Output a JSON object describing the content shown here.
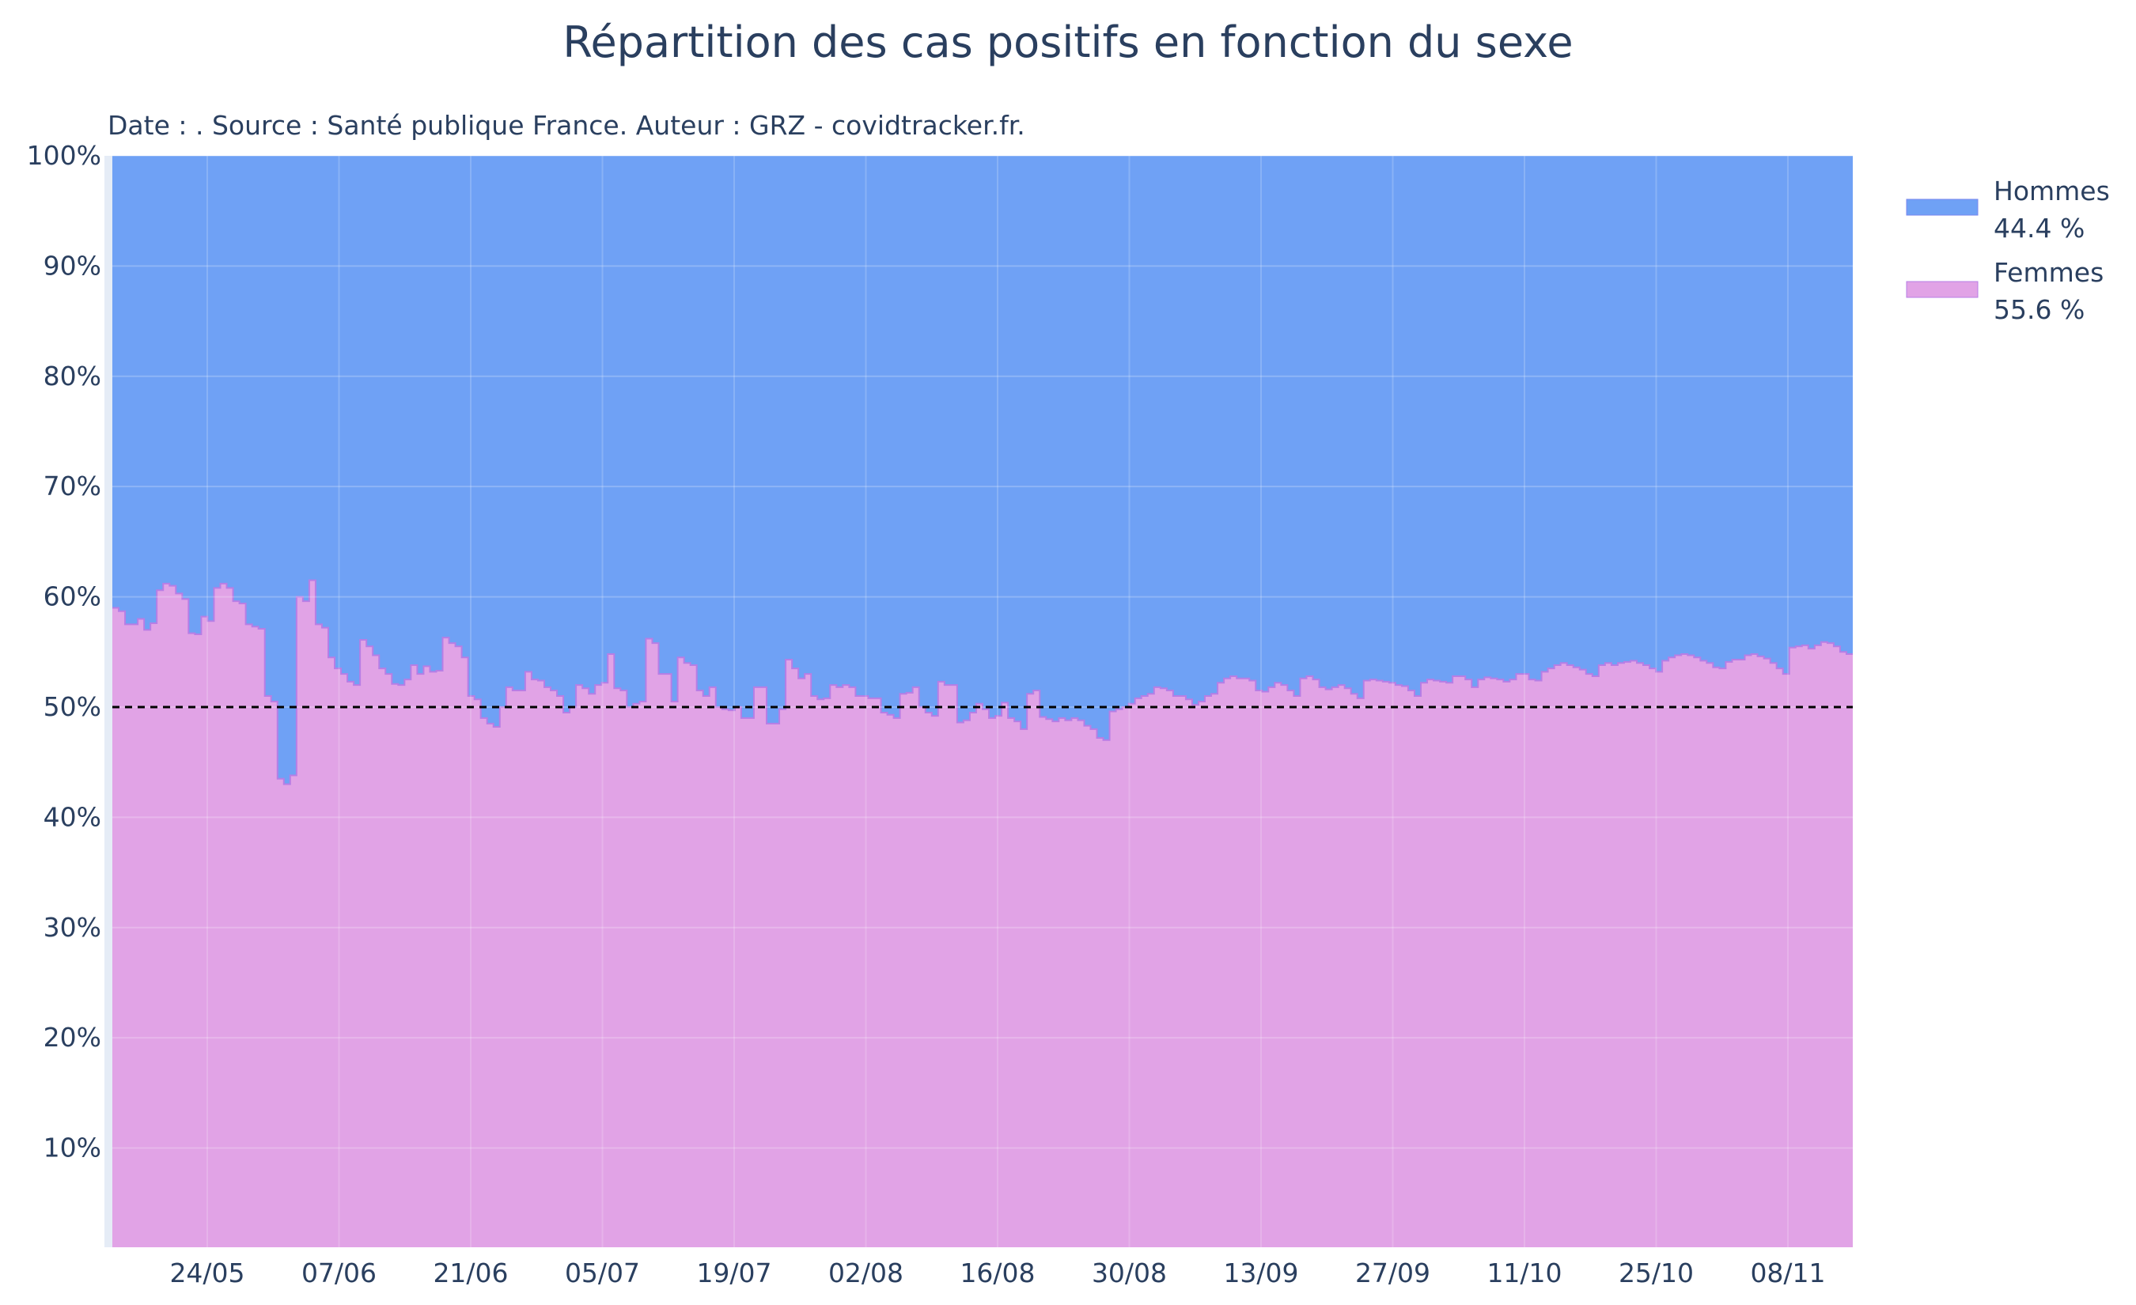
{
  "chart_data": {
    "type": "area",
    "title": "Répartition des cas positifs en fonction du sexe",
    "subtitle": "Date : . Source : Santé publique France. Auteur : GRZ - covidtracker.fr.",
    "stacked": "percent",
    "x_ticks": [
      "24/05",
      "07/06",
      "21/06",
      "05/07",
      "19/07",
      "02/08",
      "16/08",
      "30/08",
      "13/09",
      "27/09",
      "11/10",
      "25/10",
      "08/11"
    ],
    "y_ticks": [
      "10%",
      "20%",
      "30%",
      "40%",
      "50%",
      "60%",
      "70%",
      "80%",
      "90%",
      "100%"
    ],
    "ylim": [
      1,
      100
    ],
    "reference_line": {
      "y": 50,
      "style": "dashed",
      "color": "#000000"
    },
    "grid": true,
    "legend_placement": "top-right",
    "series": [
      {
        "name": "Hommes",
        "legend_value": "44.4 %",
        "color": "#6fa1f5",
        "line_color": "#7a86ee"
      },
      {
        "name": "Femmes",
        "legend_value": "55.6 %",
        "color": "#e1a3e6",
        "line_color": "#b77ee5"
      }
    ],
    "femmes_daily_percent": [
      59.0,
      58.7,
      57.5,
      57.5,
      58.0,
      57.0,
      57.6,
      60.6,
      61.2,
      61.0,
      60.3,
      59.8,
      56.7,
      56.6,
      58.2,
      57.8,
      60.8,
      61.2,
      60.8,
      59.6,
      59.4,
      57.5,
      57.3,
      57.1,
      51.0,
      50.5,
      43.5,
      43.0,
      43.8,
      60.0,
      59.6,
      61.5,
      57.5,
      57.2,
      54.5,
      53.5,
      53.0,
      52.3,
      52.0,
      56.1,
      55.5,
      54.7,
      53.5,
      53.0,
      52.1,
      52.0,
      52.5,
      53.8,
      53.0,
      53.7,
      53.2,
      53.3,
      56.3,
      55.8,
      55.5,
      54.5,
      51.0,
      50.7,
      49.0,
      48.5,
      48.2,
      50.0,
      51.8,
      51.5,
      51.5,
      53.2,
      52.5,
      52.4,
      51.8,
      51.5,
      51.0,
      49.5,
      50.0,
      52.0,
      51.7,
      51.2,
      52.0,
      52.2,
      54.8,
      51.7,
      51.5,
      50.0,
      50.3,
      50.5,
      56.2,
      55.8,
      53.0,
      53.0,
      50.5,
      54.5,
      54.0,
      53.8,
      51.5,
      51.0,
      51.8,
      50.0,
      49.8,
      49.7,
      50.0,
      49.0,
      49.0,
      51.8,
      51.8,
      48.5,
      48.5,
      49.8,
      54.3,
      53.5,
      52.6,
      53.0,
      51.0,
      50.7,
      50.8,
      52.0,
      51.8,
      52.0,
      51.8,
      51.0,
      51.0,
      50.8,
      50.8,
      49.5,
      49.3,
      49.0,
      51.2,
      51.3,
      51.8,
      50.0,
      49.5,
      49.2,
      52.3,
      52.0,
      52.0,
      48.6,
      48.8,
      49.5,
      50.3,
      49.8,
      49.0,
      49.2,
      50.4,
      49.0,
      48.7,
      48.0,
      51.2,
      51.5,
      49.1,
      48.9,
      48.7,
      49.0,
      48.8,
      49.0,
      48.8,
      48.3,
      48.0,
      47.2,
      47.0,
      49.6,
      49.8,
      50.0,
      50.3,
      50.8,
      51.0,
      51.2,
      51.8,
      51.7,
      51.5,
      51.0,
      51.0,
      50.7,
      50.2,
      50.5,
      51.0,
      51.2,
      52.2,
      52.6,
      52.8,
      52.6,
      52.6,
      52.4,
      51.5,
      51.4,
      51.8,
      52.2,
      52.0,
      51.5,
      51.0,
      52.6,
      52.8,
      52.5,
      51.8,
      51.6,
      51.8,
      52.0,
      51.7,
      51.2,
      50.8,
      52.4,
      52.5,
      52.4,
      52.3,
      52.2,
      52.0,
      51.9,
      51.5,
      51.0,
      52.2,
      52.5,
      52.4,
      52.3,
      52.2,
      52.8,
      52.8,
      52.5,
      51.8,
      52.5,
      52.7,
      52.6,
      52.5,
      52.3,
      52.5,
      53.0,
      53.0,
      52.5,
      52.4,
      53.2,
      53.5,
      53.8,
      54.0,
      53.8,
      53.6,
      53.4,
      53.0,
      52.8,
      53.8,
      54.0,
      53.8,
      54.0,
      54.1,
      54.2,
      54.0,
      53.8,
      53.5,
      53.2,
      54.2,
      54.5,
      54.7,
      54.8,
      54.7,
      54.5,
      54.2,
      54.0,
      53.6,
      53.5,
      54.1,
      54.3,
      54.3,
      54.7,
      54.8,
      54.6,
      54.4,
      54.0,
      53.5,
      53.0,
      55.4,
      55.5,
      55.6,
      55.3,
      55.6,
      55.9,
      55.8,
      55.5,
      55.0,
      54.8
    ]
  }
}
